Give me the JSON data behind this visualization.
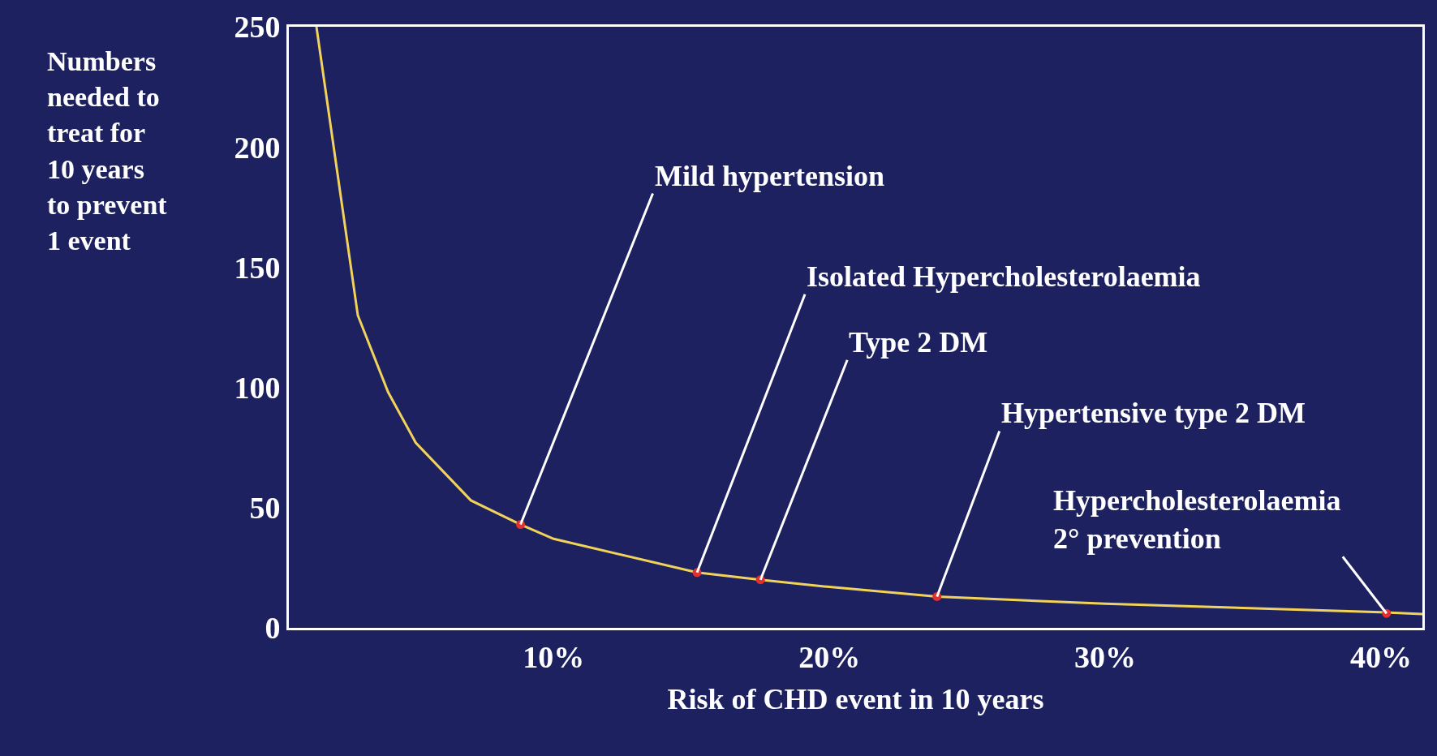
{
  "chart_data": {
    "type": "line",
    "xlabel": "Risk of CHD event in 10 years",
    "ylabel": "Numbers\nneeded to\ntreat for\n10 years\nto prevent\n1 event",
    "series": [
      {
        "color": "#f2d35a",
        "marker": "none",
        "x": [
          1.4,
          2.9,
          4.0,
          5.0,
          7.0,
          8.8,
          10,
          15.2,
          17.5,
          20,
          23.9,
          30,
          40,
          41.5
        ],
        "values": [
          250,
          130,
          98,
          77,
          53,
          43,
          37,
          23,
          20,
          17,
          13,
          10,
          6.5,
          5.7
        ]
      },
      {
        "type": "scatter",
        "color": "#e03030",
        "marker": "circle",
        "x": [
          8.8,
          15.2,
          17.5,
          23.9,
          40.2
        ],
        "values": [
          43,
          23,
          20,
          13,
          6
        ]
      }
    ],
    "annotations": [
      {
        "text": "Mild hypertension",
        "x": 8.8,
        "y": 43
      },
      {
        "text": "Isolated Hypercholesterolaemia",
        "x": 15.2,
        "y": 23
      },
      {
        "text": "Type 2 DM",
        "x": 17.5,
        "y": 20
      },
      {
        "text": "Hypertensive type 2 DM",
        "x": 23.9,
        "y": 13
      },
      {
        "text": "Hypercholesterolaemia\n2° prevention",
        "x": 40.2,
        "y": 6
      }
    ],
    "xlim": [
      0.4,
      41.5
    ],
    "ylim": [
      0,
      250
    ],
    "xticks": [
      {
        "value": 10,
        "label": "10%"
      },
      {
        "value": 20,
        "label": "20%"
      },
      {
        "value": 30,
        "label": "30%"
      },
      {
        "value": 40,
        "label": "40%"
      }
    ],
    "yticks": [
      0,
      50,
      100,
      150,
      200,
      250
    ],
    "grid": false
  }
}
